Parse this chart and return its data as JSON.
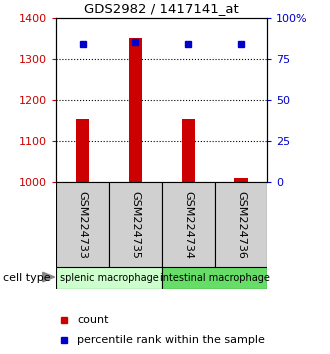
{
  "title": "GDS2982 / 1417141_at",
  "samples": [
    "GSM224733",
    "GSM224735",
    "GSM224734",
    "GSM224736"
  ],
  "counts": [
    1155,
    1350,
    1155,
    1010
  ],
  "percentile_ranks": [
    84,
    85,
    84,
    84
  ],
  "ylim_left": [
    1000,
    1400
  ],
  "ylim_right": [
    0,
    100
  ],
  "yticks_left": [
    1000,
    1100,
    1200,
    1300,
    1400
  ],
  "yticks_right": [
    0,
    25,
    50,
    75,
    100
  ],
  "ytick_labels_right": [
    "0",
    "25",
    "50",
    "75",
    "100%"
  ],
  "bar_color": "#cc0000",
  "dot_color": "#0000cc",
  "group1_color": "#ccffcc",
  "group2_color": "#66dd66",
  "group1_label": "splenic macrophage",
  "group2_label": "intestinal macrophage",
  "cell_type_label": "cell type",
  "legend_count_label": "count",
  "legend_pct_label": "percentile rank within the sample",
  "label_color_left": "#cc0000",
  "label_color_right": "#0000cc",
  "bg_color": "#ffffff",
  "sample_box_color": "#d0d0d0",
  "bar_width": 0.25,
  "x_positions": [
    0.5,
    1.5,
    2.5,
    3.5
  ]
}
